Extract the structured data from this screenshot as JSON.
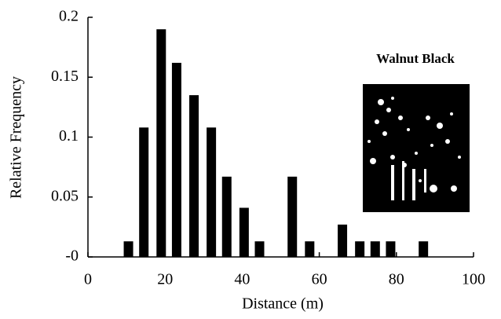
{
  "chart_data": {
    "type": "bar",
    "x_label": "Distance (m)",
    "y_label": "Relative Frequency",
    "inset_label": "Walnut Black",
    "x": [
      10.5,
      14.5,
      19,
      23,
      27.5,
      32,
      36,
      40.5,
      44.5,
      53,
      57.5,
      66,
      70.5,
      74.5,
      78.5,
      87
    ],
    "values": [
      0.013,
      0.108,
      0.19,
      0.162,
      0.135,
      0.108,
      0.067,
      0.041,
      0.013,
      0.067,
      0.013,
      0.027,
      0.013,
      0.013,
      0.013,
      0.013
    ],
    "color": "#000000",
    "xlim": [
      0,
      100
    ],
    "xticks": [
      0,
      20,
      40,
      60,
      80,
      100
    ],
    "ylim": [
      0,
      0.2
    ],
    "yticks": [
      {
        "value": 0,
        "label": "-0"
      },
      0.05,
      0.1,
      0.15,
      0.2
    ],
    "grid": false
  }
}
